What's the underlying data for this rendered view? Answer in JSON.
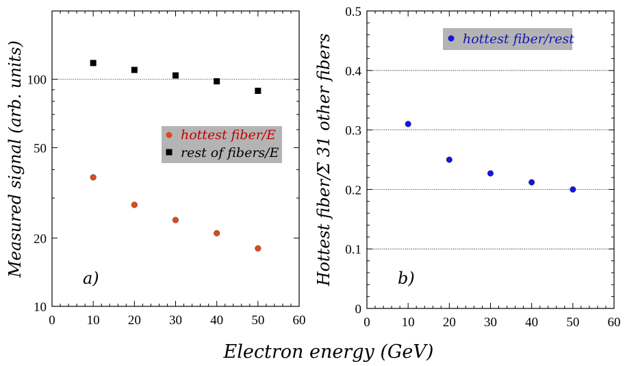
{
  "figure": {
    "shared_xlabel": "Electron energy (GeV)"
  },
  "colors": {
    "hottest_over_E": "#e04a1a",
    "rest_over_E": "#000000",
    "hottest_over_rest": "#1414e6",
    "legend_bg": "#b4b4b4",
    "legend_a_text_hottest": "#c00000",
    "legend_b_text": "#1414b4"
  },
  "chart_data": [
    {
      "panel": "a)",
      "type": "scatter",
      "xlabel": "",
      "ylabel": "Measured signal (arb. units)",
      "xlim": [
        0,
        60
      ],
      "ylim": [
        10,
        200
      ],
      "yscale": "log",
      "xticks": [
        0,
        10,
        20,
        30,
        40,
        50,
        60
      ],
      "yticks": [
        10,
        20,
        50,
        100
      ],
      "gridlines_y": [
        100
      ],
      "legend_position": "center-right",
      "series": [
        {
          "name": "hottest fiber/E",
          "marker": "circle",
          "x": [
            10,
            20,
            30,
            40,
            50
          ],
          "y": [
            37,
            28,
            24,
            21,
            18
          ]
        },
        {
          "name": "rest of fibers/E",
          "marker": "square",
          "x": [
            10,
            20,
            30,
            40,
            50
          ],
          "y": [
            118,
            110,
            104,
            98,
            89
          ]
        }
      ]
    },
    {
      "panel": "b)",
      "type": "scatter",
      "xlabel": "",
      "ylabel": "Hottest fiber/Σ 31 other fibers",
      "xlim": [
        0,
        60
      ],
      "ylim": [
        0,
        0.5
      ],
      "yscale": "linear",
      "xticks": [
        0,
        10,
        20,
        30,
        40,
        50,
        60
      ],
      "yticks": [
        0,
        0.1,
        0.2,
        0.3,
        0.4,
        0.5
      ],
      "gridlines_y": [
        0.1,
        0.2,
        0.3,
        0.4
      ],
      "legend_position": "top-right",
      "series": [
        {
          "name": "hottest fiber/rest",
          "marker": "circle",
          "x": [
            10,
            20,
            30,
            40,
            50
          ],
          "y": [
            0.31,
            0.25,
            0.227,
            0.212,
            0.2
          ]
        }
      ]
    }
  ]
}
